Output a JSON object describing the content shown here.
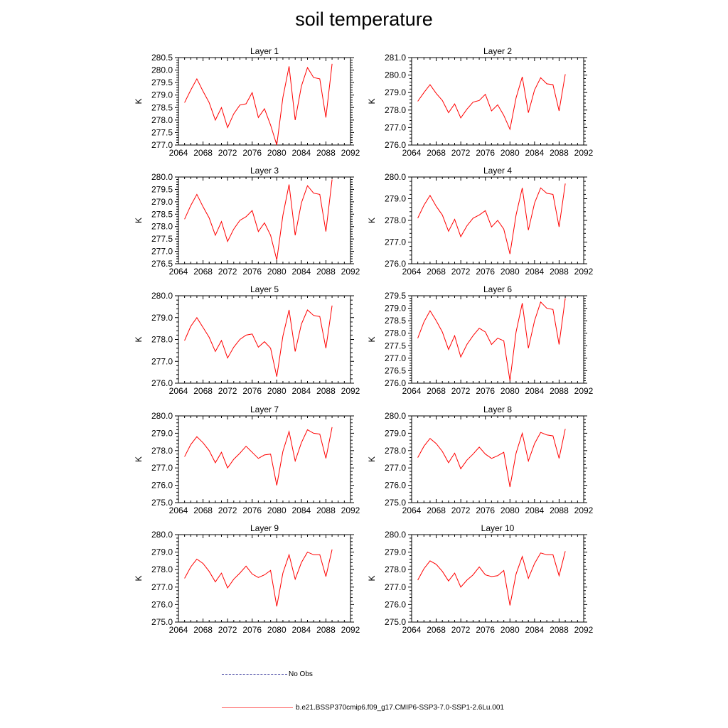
{
  "title": "soil temperature",
  "chart_data": {
    "type": "line",
    "xlim": [
      2064,
      2092
    ],
    "xticks": [
      2064,
      2068,
      2072,
      2076,
      2080,
      2084,
      2088,
      2092
    ],
    "x": [
      2065,
      2066,
      2067,
      2068,
      2069,
      2070,
      2071,
      2072,
      2073,
      2074,
      2075,
      2076,
      2077,
      2078,
      2079,
      2080,
      2081,
      2082,
      2083,
      2084,
      2085,
      2086,
      2087,
      2088,
      2089
    ],
    "line_color": "#ff0000",
    "panels": [
      {
        "title": "Layer 1",
        "ylabel": "K",
        "ylim": [
          277.0,
          280.5
        ],
        "yticks": [
          "277.0",
          "277.5",
          "278.0",
          "278.5",
          "279.0",
          "279.5",
          "280.0",
          "280.5"
        ],
        "values": [
          278.7,
          279.2,
          279.65,
          279.15,
          278.7,
          278.0,
          278.5,
          277.7,
          278.25,
          278.6,
          278.65,
          279.1,
          278.1,
          278.45,
          277.8,
          277.0,
          278.9,
          280.15,
          278.0,
          279.35,
          280.1,
          279.7,
          279.65,
          278.1,
          280.25
        ]
      },
      {
        "title": "Layer 2",
        "ylabel": "K",
        "ylim": [
          276.0,
          281.0
        ],
        "yticks": [
          "276.0",
          "277.0",
          "278.0",
          "279.0",
          "280.0",
          "281.0"
        ],
        "values": [
          278.5,
          279.0,
          279.45,
          278.95,
          278.55,
          277.85,
          278.35,
          277.55,
          278.05,
          278.45,
          278.55,
          278.9,
          277.95,
          278.3,
          277.7,
          276.9,
          278.7,
          279.9,
          277.85,
          279.15,
          279.85,
          279.5,
          279.45,
          277.95,
          280.05
        ]
      },
      {
        "title": "Layer 3",
        "ylabel": "K",
        "ylim": [
          276.5,
          280.0
        ],
        "yticks": [
          "276.5",
          "277.0",
          "277.5",
          "278.0",
          "278.5",
          "279.0",
          "279.5",
          "280.0"
        ],
        "values": [
          278.3,
          278.85,
          279.3,
          278.8,
          278.35,
          277.65,
          278.2,
          277.4,
          277.9,
          278.25,
          278.4,
          278.65,
          277.8,
          278.15,
          277.65,
          276.65,
          278.45,
          279.7,
          277.65,
          278.95,
          279.65,
          279.35,
          279.3,
          277.8,
          279.9
        ]
      },
      {
        "title": "Layer 4",
        "ylabel": "K",
        "ylim": [
          276.0,
          280.0
        ],
        "yticks": [
          "276.0",
          "277.0",
          "278.0",
          "279.0",
          "280.0"
        ],
        "values": [
          278.1,
          278.7,
          279.15,
          278.65,
          278.25,
          277.5,
          278.05,
          277.25,
          277.75,
          278.1,
          278.25,
          278.45,
          277.7,
          278.0,
          277.6,
          276.45,
          278.25,
          279.5,
          277.55,
          278.8,
          279.5,
          279.25,
          279.2,
          277.7,
          279.7
        ]
      },
      {
        "title": "Layer 5",
        "ylabel": "K",
        "ylim": [
          276.0,
          280.0
        ],
        "yticks": [
          "276.0",
          "277.0",
          "278.0",
          "279.0",
          "280.0"
        ],
        "values": [
          277.95,
          278.6,
          279.0,
          278.55,
          278.1,
          277.45,
          277.95,
          277.15,
          277.65,
          278.0,
          278.2,
          278.25,
          277.65,
          277.9,
          277.6,
          276.3,
          278.15,
          279.35,
          277.45,
          278.7,
          279.35,
          279.1,
          279.05,
          277.6,
          279.55
        ]
      },
      {
        "title": "Layer 6",
        "ylabel": "K",
        "ylim": [
          276.0,
          279.5
        ],
        "yticks": [
          "276.0",
          "276.5",
          "277.0",
          "277.5",
          "278.0",
          "278.5",
          "279.0",
          "279.5"
        ],
        "values": [
          277.8,
          278.45,
          278.9,
          278.5,
          278.05,
          277.35,
          277.9,
          277.05,
          277.55,
          277.9,
          278.2,
          278.05,
          277.55,
          277.8,
          277.7,
          276.1,
          278.05,
          279.2,
          277.4,
          278.5,
          279.25,
          279.0,
          278.95,
          277.55,
          279.4
        ]
      },
      {
        "title": "Layer 7",
        "ylabel": "K",
        "ylim": [
          275.0,
          280.0
        ],
        "yticks": [
          "275.0",
          "276.0",
          "277.0",
          "278.0",
          "279.0",
          "280.0"
        ],
        "values": [
          277.65,
          278.35,
          278.8,
          278.45,
          278.0,
          277.3,
          277.9,
          277.0,
          277.5,
          277.85,
          278.25,
          277.9,
          277.55,
          277.75,
          277.8,
          276.0,
          277.95,
          279.1,
          277.4,
          278.45,
          279.2,
          279.0,
          278.95,
          277.55,
          279.35
        ]
      },
      {
        "title": "Layer 8",
        "ylabel": "K",
        "ylim": [
          275.0,
          280.0
        ],
        "yticks": [
          "275.0",
          "276.0",
          "277.0",
          "278.0",
          "279.0",
          "280.0"
        ],
        "values": [
          277.6,
          278.25,
          278.7,
          278.4,
          277.95,
          277.3,
          277.85,
          276.95,
          277.45,
          277.8,
          278.2,
          277.8,
          277.55,
          277.7,
          277.9,
          275.9,
          277.85,
          279.0,
          277.4,
          278.4,
          279.05,
          278.9,
          278.85,
          277.55,
          279.25
        ]
      },
      {
        "title": "Layer 9",
        "ylabel": "K",
        "ylim": [
          275.0,
          280.0
        ],
        "yticks": [
          "275.0",
          "276.0",
          "277.0",
          "278.0",
          "279.0",
          "280.0"
        ],
        "values": [
          277.5,
          278.15,
          278.6,
          278.35,
          277.9,
          277.3,
          277.8,
          276.95,
          277.45,
          277.8,
          278.2,
          277.75,
          277.55,
          277.7,
          277.95,
          275.9,
          277.8,
          278.85,
          277.45,
          278.4,
          279.0,
          278.85,
          278.85,
          277.6,
          279.15
        ]
      },
      {
        "title": "Layer 10",
        "ylabel": "K",
        "ylim": [
          275.0,
          280.0
        ],
        "yticks": [
          "275.0",
          "276.0",
          "277.0",
          "278.0",
          "279.0",
          "280.0"
        ],
        "values": [
          277.4,
          278.05,
          278.5,
          278.3,
          277.9,
          277.35,
          277.8,
          277.0,
          277.4,
          277.7,
          278.15,
          277.7,
          277.6,
          277.65,
          277.95,
          275.95,
          277.75,
          278.75,
          277.5,
          278.35,
          278.95,
          278.85,
          278.85,
          277.65,
          279.05
        ]
      }
    ]
  },
  "legend": {
    "obs_label": "No Obs",
    "model_label": "b.e21.BSSP370cmip6.f09_g17.CMIP6-SSP3-7.0-SSP1-2.6Lu.001"
  }
}
